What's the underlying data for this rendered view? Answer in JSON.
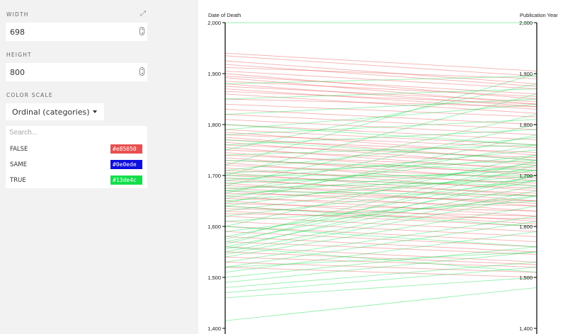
{
  "sidebar": {
    "width": {
      "label": "WIDTH",
      "value": "698"
    },
    "height": {
      "label": "HEIGHT",
      "value": "800"
    },
    "color_scale": {
      "label": "COLOR SCALE",
      "selected": "Ordinal (categories)",
      "search_placeholder": "Search...",
      "items": [
        {
          "label": "FALSE",
          "hex": "#e85050"
        },
        {
          "label": "SAME",
          "hex": "#0e0ede"
        },
        {
          "label": "TRUE",
          "hex": "#13de4c"
        }
      ]
    }
  },
  "chart_data": {
    "type": "parallel_coordinates",
    "axes": [
      {
        "label": "Date of Death",
        "range": [
          1400,
          2000
        ],
        "ticks": [
          "2,000",
          "1,900",
          "1,800",
          "1,700",
          "1,600",
          "1,500",
          "1,400"
        ]
      },
      {
        "label": "Publication Year",
        "range": [
          1400,
          2000
        ],
        "ticks": [
          "2,000",
          "1,900",
          "1,800",
          "1,700",
          "1,600",
          "1,500",
          "1,400"
        ]
      }
    ],
    "colors": {
      "FALSE": "#e85050",
      "TRUE": "#13de4c"
    },
    "series": [
      {
        "name": "FALSE",
        "lines": [
          [
            1940,
            1905
          ],
          [
            1935,
            1895
          ],
          [
            1925,
            1880
          ],
          [
            1918,
            1875
          ],
          [
            1912,
            1890
          ],
          [
            1905,
            1870
          ],
          [
            1900,
            1850
          ],
          [
            1895,
            1860
          ],
          [
            1892,
            1840
          ],
          [
            1885,
            1855
          ],
          [
            1880,
            1835
          ],
          [
            1875,
            1845
          ],
          [
            1870,
            1830
          ],
          [
            1865,
            1840
          ],
          [
            1860,
            1822
          ],
          [
            1850,
            1835
          ],
          [
            1840,
            1815
          ],
          [
            1830,
            1800
          ],
          [
            1820,
            1790
          ],
          [
            1810,
            1780
          ],
          [
            1800,
            1770
          ],
          [
            1790,
            1760
          ],
          [
            1785,
            1740
          ],
          [
            1780,
            1755
          ],
          [
            1775,
            1730
          ],
          [
            1770,
            1745
          ],
          [
            1765,
            1720
          ],
          [
            1760,
            1735
          ],
          [
            1755,
            1710
          ],
          [
            1750,
            1725
          ],
          [
            1745,
            1700
          ],
          [
            1740,
            1715
          ],
          [
            1735,
            1690
          ],
          [
            1730,
            1705
          ],
          [
            1725,
            1680
          ],
          [
            1720,
            1695
          ],
          [
            1715,
            1670
          ],
          [
            1710,
            1685
          ],
          [
            1705,
            1660
          ],
          [
            1700,
            1675
          ],
          [
            1695,
            1650
          ],
          [
            1690,
            1665
          ],
          [
            1685,
            1640
          ],
          [
            1680,
            1660
          ],
          [
            1675,
            1645
          ],
          [
            1670,
            1630
          ],
          [
            1665,
            1650
          ],
          [
            1660,
            1620
          ],
          [
            1655,
            1640
          ],
          [
            1650,
            1610
          ],
          [
            1645,
            1630
          ],
          [
            1640,
            1605
          ],
          [
            1635,
            1620
          ],
          [
            1630,
            1600
          ],
          [
            1625,
            1615
          ],
          [
            1620,
            1590
          ],
          [
            1610,
            1580
          ],
          [
            1600,
            1570
          ],
          [
            1590,
            1560
          ],
          [
            1580,
            1550
          ],
          [
            1570,
            1545
          ],
          [
            1560,
            1530
          ],
          [
            1550,
            1525
          ],
          [
            1540,
            1520
          ],
          [
            1530,
            1510
          ],
          [
            1520,
            1500
          ]
        ]
      },
      {
        "name": "TRUE",
        "lines": [
          [
            1415,
            1480
          ],
          [
            1460,
            1500
          ],
          [
            1470,
            1520
          ],
          [
            1490,
            1550
          ],
          [
            1500,
            1560
          ],
          [
            1510,
            1590
          ],
          [
            1520,
            1610
          ],
          [
            1530,
            1620
          ],
          [
            1540,
            1640
          ],
          [
            1545,
            1660
          ],
          [
            1550,
            1670
          ],
          [
            1555,
            1700
          ],
          [
            1560,
            1680
          ],
          [
            1565,
            1720
          ],
          [
            1570,
            1690
          ],
          [
            1575,
            1730
          ],
          [
            1580,
            1700
          ],
          [
            1590,
            1660
          ],
          [
            1600,
            1740
          ],
          [
            1610,
            1650
          ],
          [
            1620,
            1690
          ],
          [
            1630,
            1710
          ],
          [
            1640,
            1725
          ],
          [
            1645,
            1780
          ],
          [
            1650,
            1700
          ],
          [
            1655,
            1760
          ],
          [
            1660,
            1720
          ],
          [
            1665,
            1800
          ],
          [
            1670,
            1740
          ],
          [
            1675,
            1690
          ],
          [
            1680,
            1820
          ],
          [
            1685,
            1710
          ],
          [
            1690,
            1750
          ],
          [
            1695,
            1680
          ],
          [
            1700,
            1860
          ],
          [
            1705,
            1730
          ],
          [
            1710,
            1775
          ],
          [
            1720,
            1900
          ],
          [
            1730,
            1710
          ],
          [
            1740,
            1760
          ],
          [
            1750,
            1880
          ],
          [
            1760,
            1790
          ],
          [
            1770,
            1730
          ],
          [
            1780,
            1810
          ],
          [
            1790,
            1840
          ],
          [
            1800,
            1760
          ],
          [
            1820,
            1850
          ],
          [
            1850,
            1870
          ],
          [
            1880,
            1895
          ],
          [
            1670,
            1660
          ],
          [
            1640,
            1600
          ],
          [
            1600,
            1560
          ],
          [
            1560,
            1510
          ],
          [
            1520,
            1550
          ],
          [
            1480,
            1530
          ],
          [
            1700,
            1700
          ],
          [
            2000,
            2000
          ]
        ]
      }
    ]
  }
}
